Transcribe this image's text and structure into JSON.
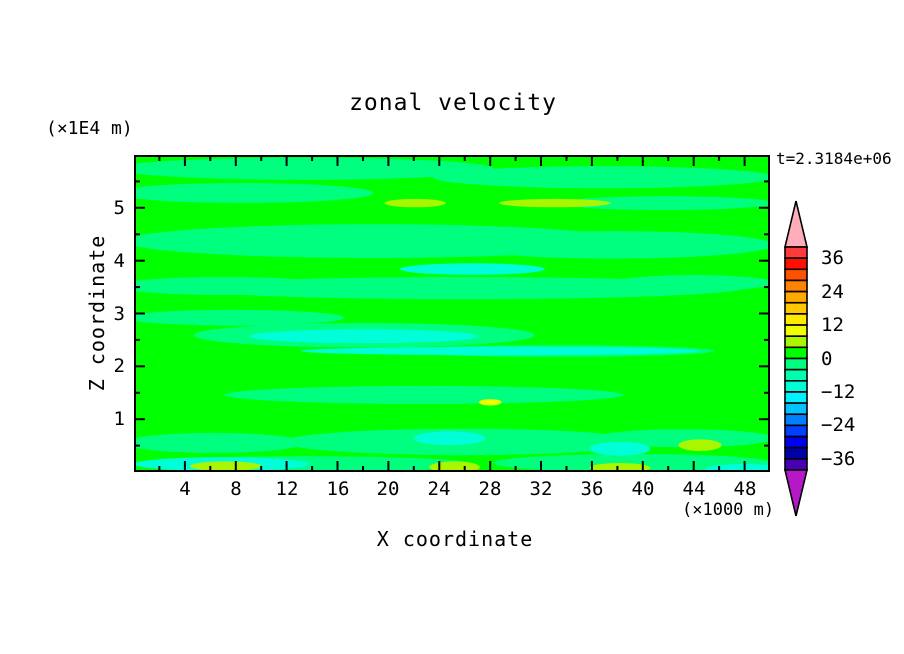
{
  "chart_data": {
    "type": "heatmap",
    "title": "zonal velocity",
    "time_annotation": "t=2.3184e+06",
    "xlabel": "X coordinate",
    "ylabel": "Z coordinate",
    "x_unit": "(×1000 m)",
    "y_unit": "(×1E4 m)",
    "xlim": [
      0,
      50
    ],
    "ylim": [
      0,
      6
    ],
    "x_ticks": [
      4,
      8,
      12,
      16,
      20,
      24,
      28,
      32,
      36,
      40,
      44,
      48
    ],
    "x_minor_step": 2,
    "y_ticks": [
      1,
      2,
      3,
      4,
      5
    ],
    "y_minor_step": 0.5,
    "grid": false,
    "colorbar": {
      "position": "right",
      "level_min": -40,
      "level_max": 40,
      "level_step": 4,
      "tick_labels": [
        "36",
        "24",
        "12",
        "0",
        "−12",
        "−24",
        "−36"
      ],
      "segment_colors_top_to_bottom": [
        "#FF3A3A",
        "#FF0F00",
        "#FF5200",
        "#FF8300",
        "#FFA800",
        "#FFC900",
        "#FFE900",
        "#F0FF00",
        "#AAF500",
        "#00FF00",
        "#00FF7F",
        "#00FFAE",
        "#00FFD9",
        "#00F2FF",
        "#00C3FF",
        "#0080FF",
        "#0040FF",
        "#0000F0",
        "#0000A8",
        "#4800B4"
      ],
      "over_arrow_color": "#FFADB9",
      "under_arrow_color": "#B718C6"
    },
    "field_colors": {
      "background": "#00FF00",
      "spring_green": "#00FF7F",
      "turquoise": "#00FFD9",
      "yellow_green": "#AAF500",
      "yellow": "#F0FF00"
    },
    "field_value_ranges": {
      "background": [
        0,
        4
      ],
      "spring_green": [
        -4,
        0
      ],
      "turquoise": [
        -12,
        -4
      ],
      "yellow_green": [
        4,
        8
      ],
      "yellow": [
        8,
        12
      ]
    },
    "features": [
      {
        "color_key": "spring_green",
        "cx": 13.4,
        "cy": 5.74,
        "rx": 14.9,
        "ry": 0.21
      },
      {
        "color_key": "spring_green",
        "cx": 36.9,
        "cy": 5.58,
        "rx": 13.4,
        "ry": 0.21
      },
      {
        "color_key": "spring_green",
        "cx": 8.6,
        "cy": 5.28,
        "rx": 10.2,
        "ry": 0.19
      },
      {
        "color_key": "spring_green",
        "cx": 41.7,
        "cy": 5.09,
        "rx": 8.6,
        "ry": 0.13
      },
      {
        "color_key": "spring_green",
        "cx": 18.9,
        "cy": 4.37,
        "rx": 19.7,
        "ry": 0.32
      },
      {
        "color_key": "spring_green",
        "cx": 37.7,
        "cy": 4.3,
        "rx": 12.6,
        "ry": 0.26
      },
      {
        "color_key": "spring_green",
        "cx": 7.1,
        "cy": 3.52,
        "rx": 8.6,
        "ry": 0.17
      },
      {
        "color_key": "spring_green",
        "cx": 25.9,
        "cy": 3.48,
        "rx": 22.0,
        "ry": 0.21
      },
      {
        "color_key": "spring_green",
        "cx": 44.0,
        "cy": 3.58,
        "rx": 6.3,
        "ry": 0.15
      },
      {
        "color_key": "spring_green",
        "cx": 7.9,
        "cy": 2.92,
        "rx": 8.6,
        "ry": 0.15
      },
      {
        "color_key": "spring_green",
        "cx": 18.1,
        "cy": 2.59,
        "rx": 13.4,
        "ry": 0.23
      },
      {
        "color_key": "spring_green",
        "cx": 33.0,
        "cy": 2.29,
        "rx": 12.6,
        "ry": 0.11
      },
      {
        "color_key": "spring_green",
        "cx": 22.8,
        "cy": 1.46,
        "rx": 15.7,
        "ry": 0.17
      },
      {
        "color_key": "spring_green",
        "cx": 6.3,
        "cy": 0.55,
        "rx": 7.1,
        "ry": 0.19
      },
      {
        "color_key": "spring_green",
        "cx": 25.9,
        "cy": 0.57,
        "rx": 14.2,
        "ry": 0.25
      },
      {
        "color_key": "spring_green",
        "cx": 43.2,
        "cy": 0.64,
        "rx": 7.1,
        "ry": 0.17
      },
      {
        "color_key": "spring_green",
        "cx": 13.4,
        "cy": 0.15,
        "rx": 13.4,
        "ry": 0.15
      },
      {
        "color_key": "spring_green",
        "cx": 39.3,
        "cy": 0.17,
        "rx": 11.0,
        "ry": 0.17
      },
      {
        "color_key": "turquoise",
        "cx": 26.6,
        "cy": 3.84,
        "rx": 5.7,
        "ry": 0.11
      },
      {
        "color_key": "turquoise",
        "cx": 18.1,
        "cy": 2.57,
        "rx": 9.0,
        "ry": 0.13
      },
      {
        "color_key": "turquoise",
        "cx": 28.8,
        "cy": 2.29,
        "rx": 15.7,
        "ry": 0.08
      },
      {
        "color_key": "turquoise",
        "cx": 24.8,
        "cy": 0.64,
        "rx": 2.8,
        "ry": 0.13
      },
      {
        "color_key": "turquoise",
        "cx": 38.2,
        "cy": 0.44,
        "rx": 2.4,
        "ry": 0.13
      },
      {
        "color_key": "turquoise",
        "cx": 6.9,
        "cy": 0.15,
        "rx": 6.9,
        "ry": 0.13
      },
      {
        "color_key": "turquoise",
        "cx": 48.0,
        "cy": 0.06,
        "rx": 3.1,
        "ry": 0.09
      },
      {
        "color_key": "yellow_green",
        "cx": 22.1,
        "cy": 5.09,
        "rx": 2.4,
        "ry": 0.08
      },
      {
        "color_key": "yellow_green",
        "cx": 33.1,
        "cy": 5.09,
        "rx": 4.4,
        "ry": 0.08
      },
      {
        "color_key": "yellow_green",
        "cx": 25.2,
        "cy": 0.09,
        "rx": 2.0,
        "ry": 0.11
      },
      {
        "color_key": "yellow_green",
        "cx": 38.2,
        "cy": 0.08,
        "rx": 2.4,
        "ry": 0.09
      },
      {
        "color_key": "yellow_green",
        "cx": 44.5,
        "cy": 0.51,
        "rx": 1.7,
        "ry": 0.11
      },
      {
        "color_key": "yellow_green",
        "cx": 7.2,
        "cy": 0.11,
        "rx": 2.8,
        "ry": 0.09
      },
      {
        "color_key": "yellow",
        "cx": 28.0,
        "cy": 1.32,
        "rx": 0.9,
        "ry": 0.06
      }
    ]
  }
}
